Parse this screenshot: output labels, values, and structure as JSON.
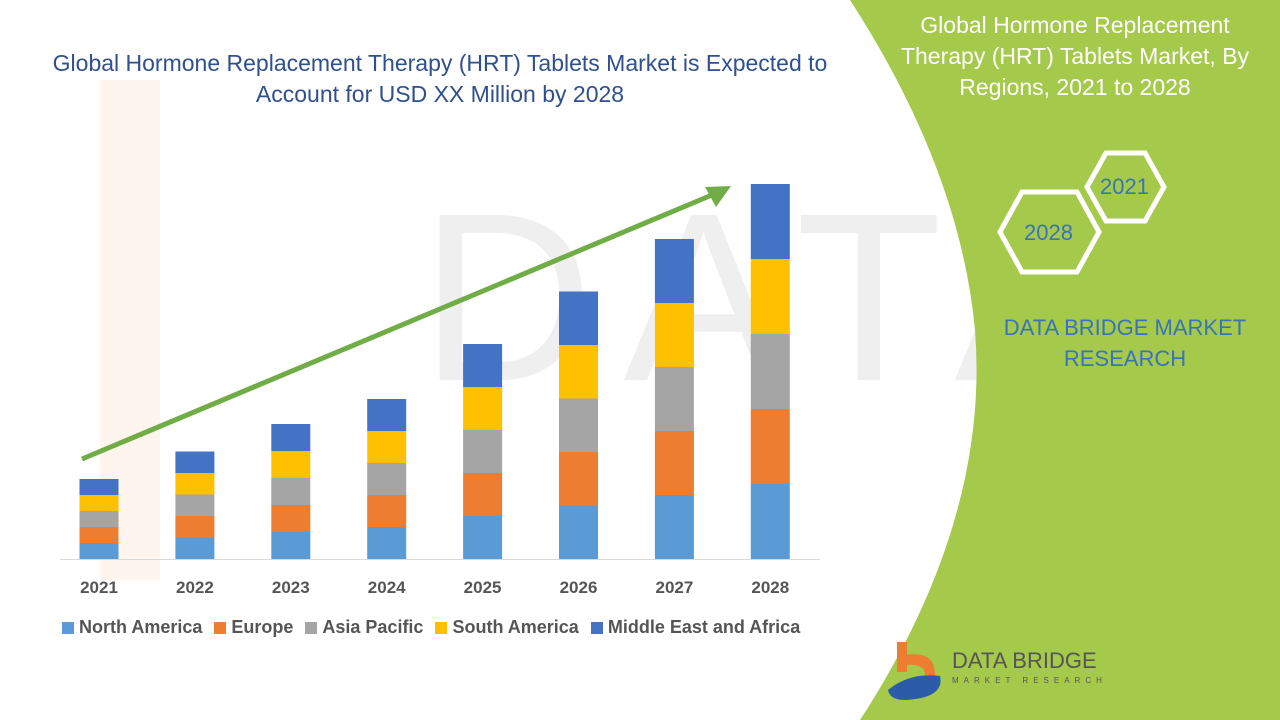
{
  "title": "Global Hormone Replacement Therapy (HRT) Tablets Market is Expected to Account for USD XX Million by 2028",
  "side_panel": {
    "title": "Global Hormone Replacement Therapy (HRT) Tablets Market, By Regions, 2021 to 2028",
    "hex_labels": [
      "2021",
      "2028"
    ],
    "brand": "DATA BRIDGE MARKET RESEARCH",
    "accent": "#a5c94b"
  },
  "logo": {
    "name": "DATA BRIDGE",
    "tagline": "MARKET RESEARCH"
  },
  "chart_data": {
    "type": "bar",
    "stacked": true,
    "title": "",
    "xlabel": "",
    "ylabel": "",
    "categories": [
      "2021",
      "2022",
      "2023",
      "2024",
      "2025",
      "2026",
      "2027",
      "2028"
    ],
    "series": [
      {
        "name": "North America",
        "color": "#5b9bd5",
        "values": [
          16,
          21.5,
          27,
          32,
          43,
          53.5,
          64,
          75
        ]
      },
      {
        "name": "Europe",
        "color": "#ed7d31",
        "values": [
          16,
          21.5,
          27,
          32,
          43,
          53.5,
          64,
          75
        ]
      },
      {
        "name": "Asia Pacific",
        "color": "#a5a5a5",
        "values": [
          16,
          21.5,
          27,
          32,
          43,
          53.5,
          64,
          75
        ]
      },
      {
        "name": "South America",
        "color": "#ffc000",
        "values": [
          16,
          21.5,
          27,
          32,
          43,
          53.5,
          64,
          75
        ]
      },
      {
        "name": "Middle East and Africa",
        "color": "#4472c4",
        "values": [
          16,
          21.5,
          27,
          32,
          43,
          53.5,
          64,
          75
        ]
      }
    ],
    "ylim": [
      0,
      380
    ],
    "grid": false,
    "legend": "bottom",
    "trend_arrow_color": "#70ad47"
  }
}
